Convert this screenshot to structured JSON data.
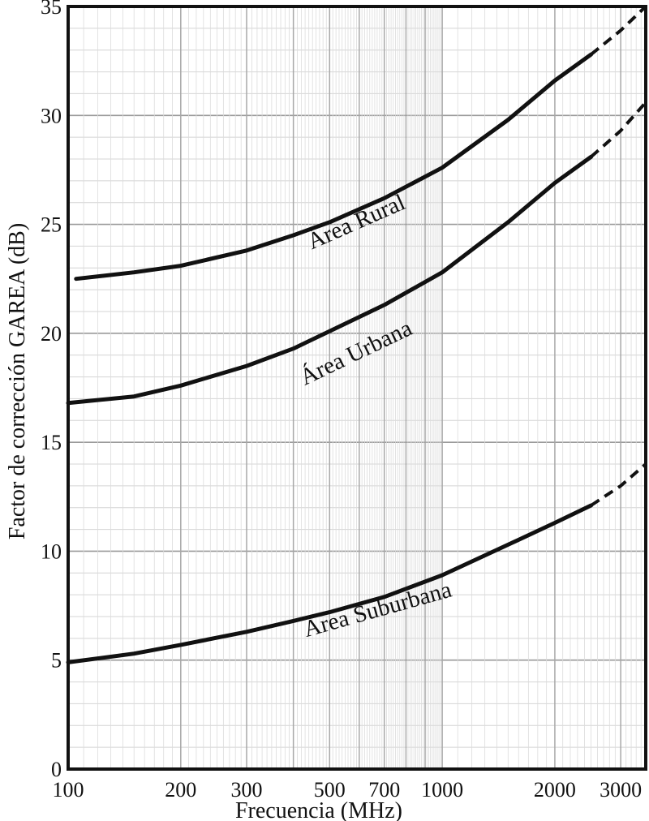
{
  "chart_data": {
    "type": "line",
    "xlabel": "Frecuencia (MHz)",
    "ylabel": "Factor de corrección GAREA (dB)",
    "x_scale": "log",
    "xlim": [
      100,
      3500
    ],
    "ylim": [
      0,
      35
    ],
    "grid": true,
    "x_ticks": [
      100,
      200,
      300,
      500,
      700,
      1000,
      2000,
      3000
    ],
    "x_tick_labels": [
      "100",
      "200",
      "300",
      "500",
      "700",
      "1000",
      "2000",
      "3000"
    ],
    "y_ticks": [
      0,
      5,
      10,
      15,
      20,
      25,
      30,
      35
    ],
    "y_tick_labels": [
      "0",
      "5",
      "10",
      "15",
      "20",
      "25",
      "30",
      "35"
    ],
    "series": [
      {
        "name": "Área Rural",
        "color": "#111111",
        "x": [
          105,
          150,
          200,
          300,
          400,
          500,
          700,
          1000,
          1500,
          2000,
          2500
        ],
        "y": [
          22.5,
          22.8,
          23.1,
          23.8,
          24.5,
          25.1,
          26.2,
          27.6,
          29.8,
          31.6,
          32.8
        ],
        "extrapolated": {
          "x": [
            2500,
            3000,
            3500
          ],
          "y": [
            32.8,
            33.9,
            35.0
          ]
        },
        "label_anchor": {
          "x": 600,
          "y": 24.8
        }
      },
      {
        "name": "Área Urbana",
        "color": "#111111",
        "x": [
          100,
          150,
          200,
          300,
          400,
          500,
          700,
          1000,
          1500,
          2000,
          2500
        ],
        "y": [
          16.8,
          17.1,
          17.6,
          18.5,
          19.3,
          20.1,
          21.3,
          22.8,
          25.1,
          26.9,
          28.1
        ],
        "extrapolated": {
          "x": [
            2500,
            3000,
            3500
          ],
          "y": [
            28.1,
            29.3,
            30.6
          ]
        },
        "label_anchor": {
          "x": 600,
          "y": 18.8
        }
      },
      {
        "name": "Área Suburbana",
        "color": "#111111",
        "x": [
          100,
          150,
          200,
          300,
          400,
          500,
          700,
          1000,
          1500,
          2000,
          2500
        ],
        "y": [
          4.9,
          5.3,
          5.7,
          6.3,
          6.8,
          7.2,
          7.9,
          8.9,
          10.3,
          11.3,
          12.1
        ],
        "extrapolated": {
          "x": [
            2500,
            3000,
            3500
          ],
          "y": [
            12.1,
            13.0,
            14.0
          ]
        },
        "label_anchor": {
          "x": 680,
          "y": 7.0
        }
      }
    ]
  }
}
